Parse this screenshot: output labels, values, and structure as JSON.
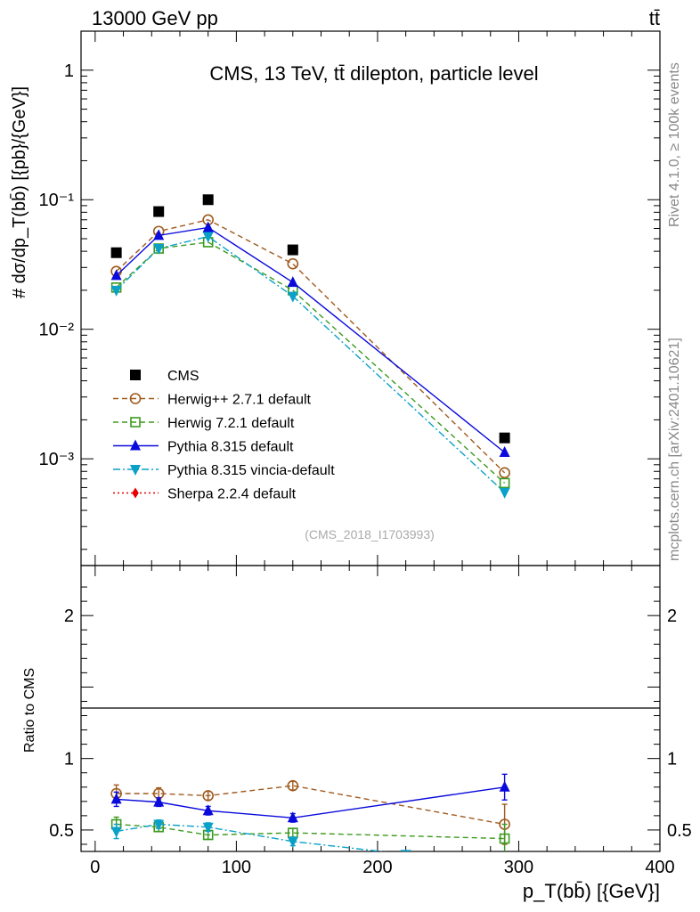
{
  "header": {
    "left": "13000 GeV pp",
    "right": "tt̄"
  },
  "side_text": {
    "rivet": "Rivet 4.1.0, ≥ 100k events",
    "mcplots": "mcplots.cern.ch [arXiv:2401.10621]"
  },
  "colors": {
    "cms": "#000000",
    "herwigpp": "#a05a1e",
    "herwig7": "#3c9a1e",
    "pythia": "#0a0adc",
    "vincia": "#0aa0c8",
    "sherpa": "#e60000"
  },
  "chart_data": [
    {
      "type": "line",
      "name": "main",
      "title": "CMS, 13 TeV, tt̄ dilepton, particle level",
      "watermark": "(CMS_2018_I1703993)",
      "ylabel": "# dσ/dp_T(bb̄) [{pb}/{GeV}]",
      "yscale": "log",
      "ylim": [
        0.00015,
        2.0
      ],
      "xlim": [
        -10,
        400
      ],
      "ytick_labels": [
        "1",
        "10⁻¹",
        "10⁻²",
        "10⁻³"
      ],
      "ytick_values": [
        1,
        0.1,
        0.01,
        0.001
      ],
      "legend_position": "center-left",
      "series": [
        {
          "name": "CMS",
          "key": "cms",
          "marker": "square-filled",
          "x": [
            15,
            45,
            80,
            140,
            290
          ],
          "y": [
            0.039,
            0.081,
            0.1,
            0.041,
            0.00145
          ]
        },
        {
          "name": "Herwig++ 2.7.1 default",
          "key": "herwigpp",
          "marker": "circle-open",
          "dash": "dashed",
          "x": [
            15,
            45,
            80,
            140,
            290
          ],
          "y": [
            0.028,
            0.057,
            0.07,
            0.032,
            0.00078
          ]
        },
        {
          "name": "Herwig 7.2.1 default",
          "key": "herwig7",
          "marker": "square-open",
          "dash": "dashed",
          "x": [
            15,
            45,
            80,
            140,
            290
          ],
          "y": [
            0.021,
            0.042,
            0.047,
            0.02,
            0.00065
          ]
        },
        {
          "name": "Pythia 8.315 default",
          "key": "pythia",
          "marker": "triangle-up",
          "dash": "solid",
          "x": [
            15,
            45,
            80,
            140,
            290
          ],
          "y": [
            0.026,
            0.053,
            0.061,
            0.023,
            0.00112
          ]
        },
        {
          "name": "Pythia 8.315 vincia-default",
          "key": "vincia",
          "marker": "triangle-down",
          "dash": "dashdot",
          "x": [
            15,
            45,
            80,
            140,
            290
          ],
          "y": [
            0.02,
            0.042,
            0.052,
            0.018,
            0.00055
          ]
        },
        {
          "name": "Sherpa 2.2.4 default",
          "key": "sherpa",
          "marker": "diamond",
          "dash": "dotted",
          "x": [],
          "y": []
        }
      ]
    },
    {
      "type": "line",
      "name": "ratio",
      "ylabel": "Ratio to CMS",
      "xlabel": "p_T(bb̄) [{GeV}]",
      "ylim": [
        0.35,
        2.35
      ],
      "xlim": [
        -10,
        400
      ],
      "ytick_labels": [
        "0.5",
        "1",
        "2"
      ],
      "ytick_values": [
        0.5,
        1,
        2
      ],
      "xtick_labels": [
        "0",
        "100",
        "200",
        "300",
        "400"
      ],
      "xtick_values": [
        0,
        100,
        200,
        300,
        400
      ],
      "series": [
        {
          "name": "Herwig++ 2.7.1 default",
          "key": "herwigpp",
          "marker": "circle-open",
          "dash": "dashed",
          "x": [
            15,
            45,
            80,
            140,
            290
          ],
          "y": [
            0.755,
            0.755,
            0.74,
            0.81,
            0.54
          ],
          "err": [
            0.06,
            0.04,
            0.03,
            0.03,
            0.14
          ]
        },
        {
          "name": "Herwig 7.2.1 default",
          "key": "herwig7",
          "marker": "square-open",
          "dash": "dashed",
          "x": [
            15,
            45,
            80,
            140,
            290
          ],
          "y": [
            0.54,
            0.52,
            0.465,
            0.48,
            0.44
          ],
          "err": [
            0.05,
            0.03,
            0.03,
            0.03,
            0.1
          ]
        },
        {
          "name": "Pythia 8.315 default",
          "key": "pythia",
          "marker": "triangle-up",
          "dash": "solid",
          "x": [
            15,
            45,
            80,
            140,
            290
          ],
          "y": [
            0.715,
            0.695,
            0.635,
            0.585,
            0.8
          ],
          "err": [
            0.05,
            0.03,
            0.03,
            0.03,
            0.09
          ]
        },
        {
          "name": "Pythia 8.315 vincia-default",
          "key": "vincia",
          "marker": "triangle-down",
          "dash": "dashdot",
          "x": [
            15,
            45,
            80,
            140,
            220
          ],
          "y": [
            0.49,
            0.54,
            0.52,
            0.42,
            0.33
          ],
          "err": [
            0.05,
            0.03,
            0.03,
            0.03,
            0
          ]
        }
      ]
    }
  ]
}
